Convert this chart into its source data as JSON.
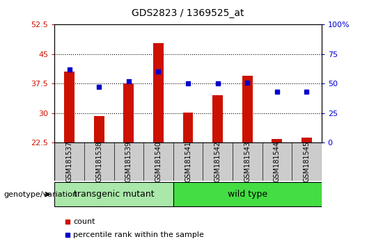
{
  "title": "GDS2823 / 1369525_at",
  "samples": [
    "GSM181537",
    "GSM181538",
    "GSM181539",
    "GSM181540",
    "GSM181541",
    "GSM181542",
    "GSM181543",
    "GSM181544",
    "GSM181545"
  ],
  "counts": [
    40.5,
    29.2,
    37.5,
    47.8,
    30.2,
    34.5,
    39.5,
    23.5,
    23.8
  ],
  "percentile_ranks": [
    62,
    47,
    52,
    60,
    50,
    50,
    51,
    43,
    43
  ],
  "ylim_left": [
    22.5,
    52.5
  ],
  "ylim_right": [
    0,
    100
  ],
  "yticks_left": [
    22.5,
    30,
    37.5,
    45,
    52.5
  ],
  "yticks_right": [
    0,
    25,
    50,
    75,
    100
  ],
  "ytick_labels_left": [
    "22.5",
    "30",
    "37.5",
    "45",
    "52.5"
  ],
  "ytick_labels_right": [
    "0",
    "25",
    "50",
    "75",
    "100%"
  ],
  "grid_values": [
    30,
    37.5,
    45
  ],
  "bar_color": "#cc1100",
  "dot_color": "#0000cc",
  "bar_bottom": 22.5,
  "transgenic_mutant_indices": [
    0,
    1,
    2,
    3
  ],
  "wild_type_indices": [
    4,
    5,
    6,
    7,
    8
  ],
  "group_label": "genotype/variation",
  "group1_label": "transgenic mutant",
  "group2_label": "wild type",
  "group1_color": "#aae8aa",
  "group2_color": "#44dd44",
  "legend_count_label": "count",
  "legend_pct_label": "percentile rank within the sample",
  "left_tick_color": "#cc1100",
  "right_tick_color": "#0000cc",
  "tick_bg_color": "#cccccc",
  "fig_bg": "#ffffff"
}
